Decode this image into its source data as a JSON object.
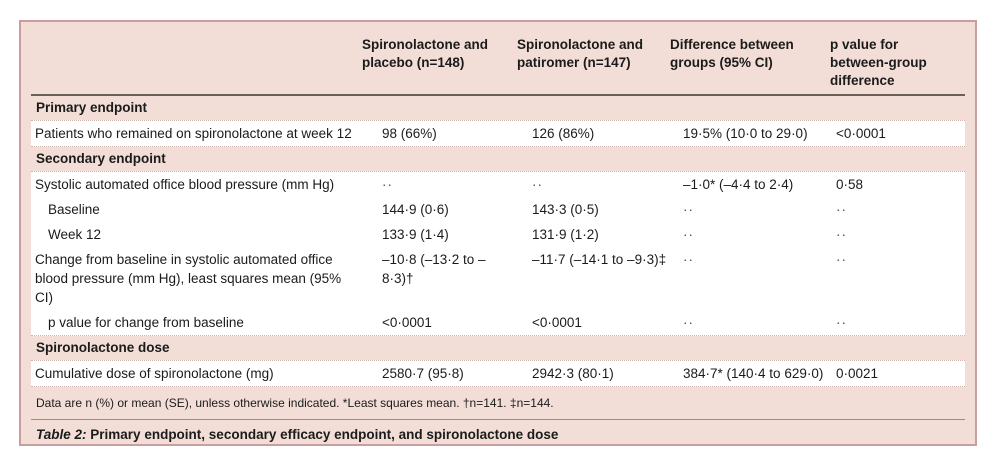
{
  "table": {
    "columns": [
      "",
      "Spironolactone and placebo (n=148)",
      "Spironolactone and patiromer (n=147)",
      "Difference between groups (95% CI)",
      "p value for between-group difference"
    ],
    "rows": [
      {
        "type": "section",
        "label": "Primary endpoint"
      },
      {
        "type": "data",
        "indent": false,
        "label": "Patients who remained on spironolactone at week 12",
        "values": [
          "98 (66%)",
          "126 (86%)",
          "19·5% (10·0 to 29·0)",
          "<0·0001"
        ]
      },
      {
        "type": "section",
        "label": "Secondary endpoint"
      },
      {
        "type": "data",
        "indent": false,
        "label": "Systolic automated office blood pressure (mm Hg)",
        "values": [
          "··",
          "··",
          "–1·0* (–4·4 to 2·4)",
          "0·58"
        ]
      },
      {
        "type": "data",
        "indent": true,
        "label": "Baseline",
        "values": [
          "144·9 (0·6)",
          "143·3 (0·5)",
          "··",
          "··"
        ]
      },
      {
        "type": "data",
        "indent": true,
        "label": "Week 12",
        "values": [
          "133·9 (1·4)",
          "131·9 (1·2)",
          "··",
          "··"
        ]
      },
      {
        "type": "data",
        "indent": false,
        "label": "Change from baseline in systolic automated office blood pressure (mm Hg), least squares mean (95% CI)",
        "values": [
          "–10·8 (–13·2 to –8·3)†",
          "–11·7 (–14·1 to –9·3)‡",
          "··",
          "··"
        ]
      },
      {
        "type": "data",
        "indent": true,
        "label": "p value for change from baseline",
        "values": [
          "<0·0001",
          "<0·0001",
          "··",
          "··"
        ]
      },
      {
        "type": "section",
        "label": "Spironolactone dose"
      },
      {
        "type": "data",
        "indent": false,
        "label": "Cumulative dose of spironolactone (mg)",
        "values": [
          "2580·7 (95·8)",
          "2942·3 (80·1)",
          "384·7* (140·4 to 629·0)",
          "0·0021"
        ]
      }
    ],
    "footnote": "Data are n (%) or mean (SE), unless otherwise indicated. *Least squares mean. †n=141. ‡n=144.",
    "caption_label": "Table 2:",
    "caption_text": "Primary endpoint, secondary efficacy endpoint, and spironolactone dose",
    "placeholder": "··"
  },
  "colors": {
    "table_background": "#f2ded7",
    "table_border": "#c99e9e",
    "row_background": "#ffffff",
    "header_rule": "#6a6058",
    "caption_rule": "#8f8f8f",
    "text": "#1b1b1b"
  }
}
